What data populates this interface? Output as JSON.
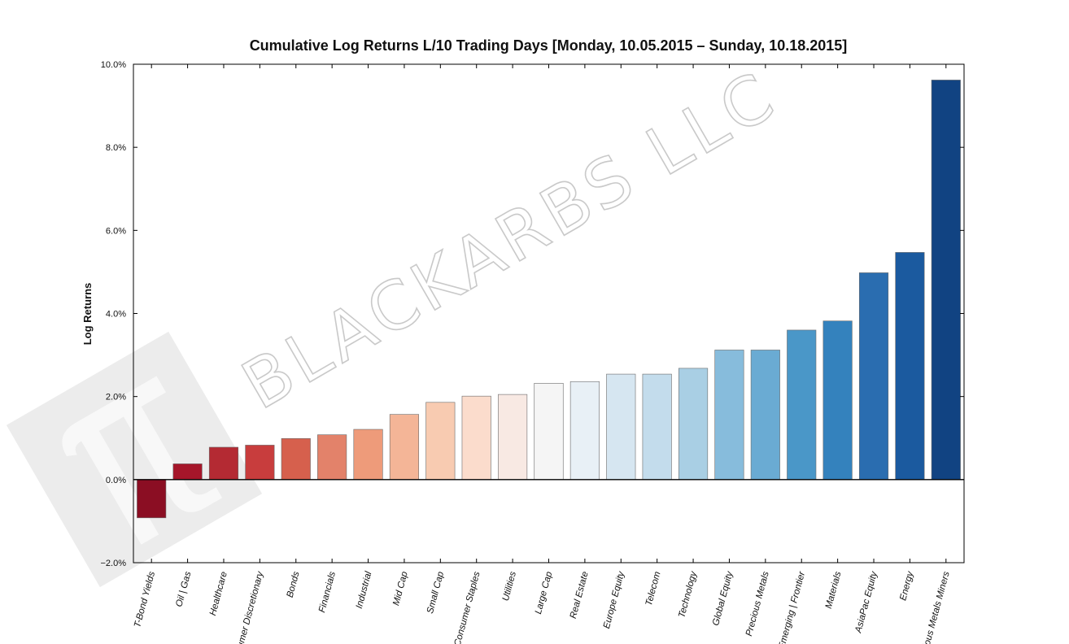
{
  "watermark": {
    "text": "BLACKARBS LLC",
    "icon": "pi-icon"
  },
  "chart_data": {
    "type": "bar",
    "title": "Cumulative Log Returns L/10 Trading Days  [Monday, 10.05.2015 – Sunday, 10.18.2015]",
    "xlabel": "",
    "ylabel": "Log Returns",
    "ylim": [
      -2.0,
      10.0
    ],
    "yticks": [
      -2.0,
      0.0,
      2.0,
      4.0,
      6.0,
      8.0,
      10.0
    ],
    "ytick_labels": [
      "−2.0%",
      "0.0%",
      "2.0%",
      "4.0%",
      "6.0%",
      "8.0%",
      "10.0%"
    ],
    "categories": [
      "T-Bond Yields",
      "Oil | Gas",
      "Healthcare",
      "Consumer Discretionary",
      "Bonds",
      "Financials",
      "Industrial",
      "Mid Cap",
      "Small Cap",
      "Consumer Staples",
      "Utilities",
      "Large Cap",
      "Real Estate",
      "Europe Equity",
      "Telecom",
      "Technology",
      "Global Equity",
      "Precious Metals",
      "Emerging | Frontier",
      "Materials",
      "AsiaPac Equity",
      "Energy",
      "Precious Metals Miners"
    ],
    "values": [
      -0.92,
      0.38,
      0.78,
      0.83,
      0.99,
      1.08,
      1.21,
      1.57,
      1.86,
      2.01,
      2.05,
      2.32,
      2.36,
      2.54,
      2.54,
      2.68,
      3.12,
      3.12,
      3.6,
      3.82,
      4.98,
      5.47,
      9.62
    ],
    "colors": [
      "#8b0e23",
      "#a6162a",
      "#b42a33",
      "#c83d3d",
      "#d6604d",
      "#e3826a",
      "#ee9b7a",
      "#f4b597",
      "#f8cbb1",
      "#fbdccc",
      "#f8e9e3",
      "#f5f5f5",
      "#e8f0f6",
      "#d6e6f1",
      "#c3dcec",
      "#a9cfe4",
      "#87bcdc",
      "#6aabd3",
      "#4a97c8",
      "#3482bd",
      "#2a6db0",
      "#1b5a9f",
      "#114382"
    ],
    "grid": false,
    "legend": "none"
  }
}
